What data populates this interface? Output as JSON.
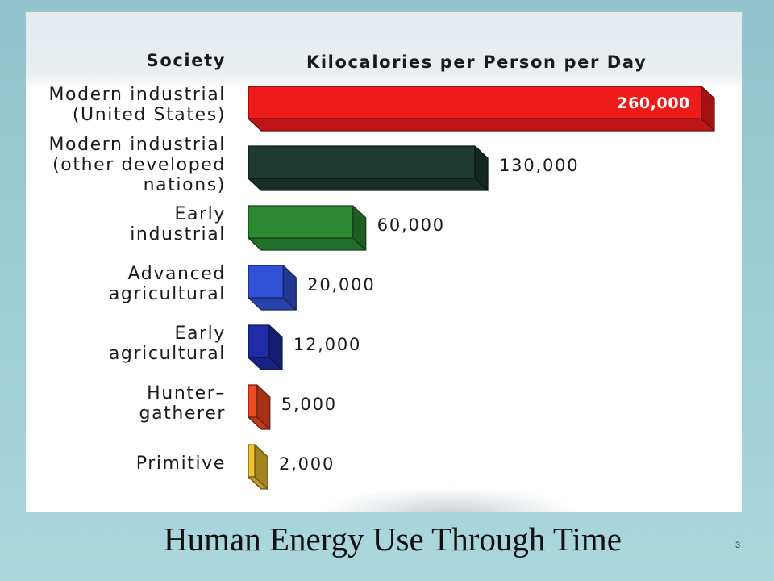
{
  "slide": {
    "page_number": "3"
  },
  "chart_data": {
    "type": "bar",
    "orientation": "horizontal",
    "style": "3d",
    "title": "Human Energy Use Through Time",
    "ylabel": "Society",
    "xlabel": "Kilocalories per Person per Day",
    "categories": [
      "Modern industrial\n(United States)",
      "Modern industrial\n(other developed\nnations)",
      "Early\nindustrial",
      "Advanced\nagricultural",
      "Early\nagricultural",
      "Hunter–\ngatherer",
      "Primitive"
    ],
    "values": [
      260000,
      130000,
      60000,
      20000,
      12000,
      5000,
      2000
    ],
    "data_labels": [
      "260,000",
      "130,000",
      "60,000",
      "20,000",
      "12,000",
      "5,000",
      "2,000"
    ],
    "colors": [
      "#ee1b1b",
      "#1f3a30",
      "#2c8a33",
      "#3152d6",
      "#1e2da6",
      "#f04a22",
      "#f0c030"
    ],
    "xlim": [
      0,
      260000
    ],
    "grid": false,
    "legend": "none"
  }
}
